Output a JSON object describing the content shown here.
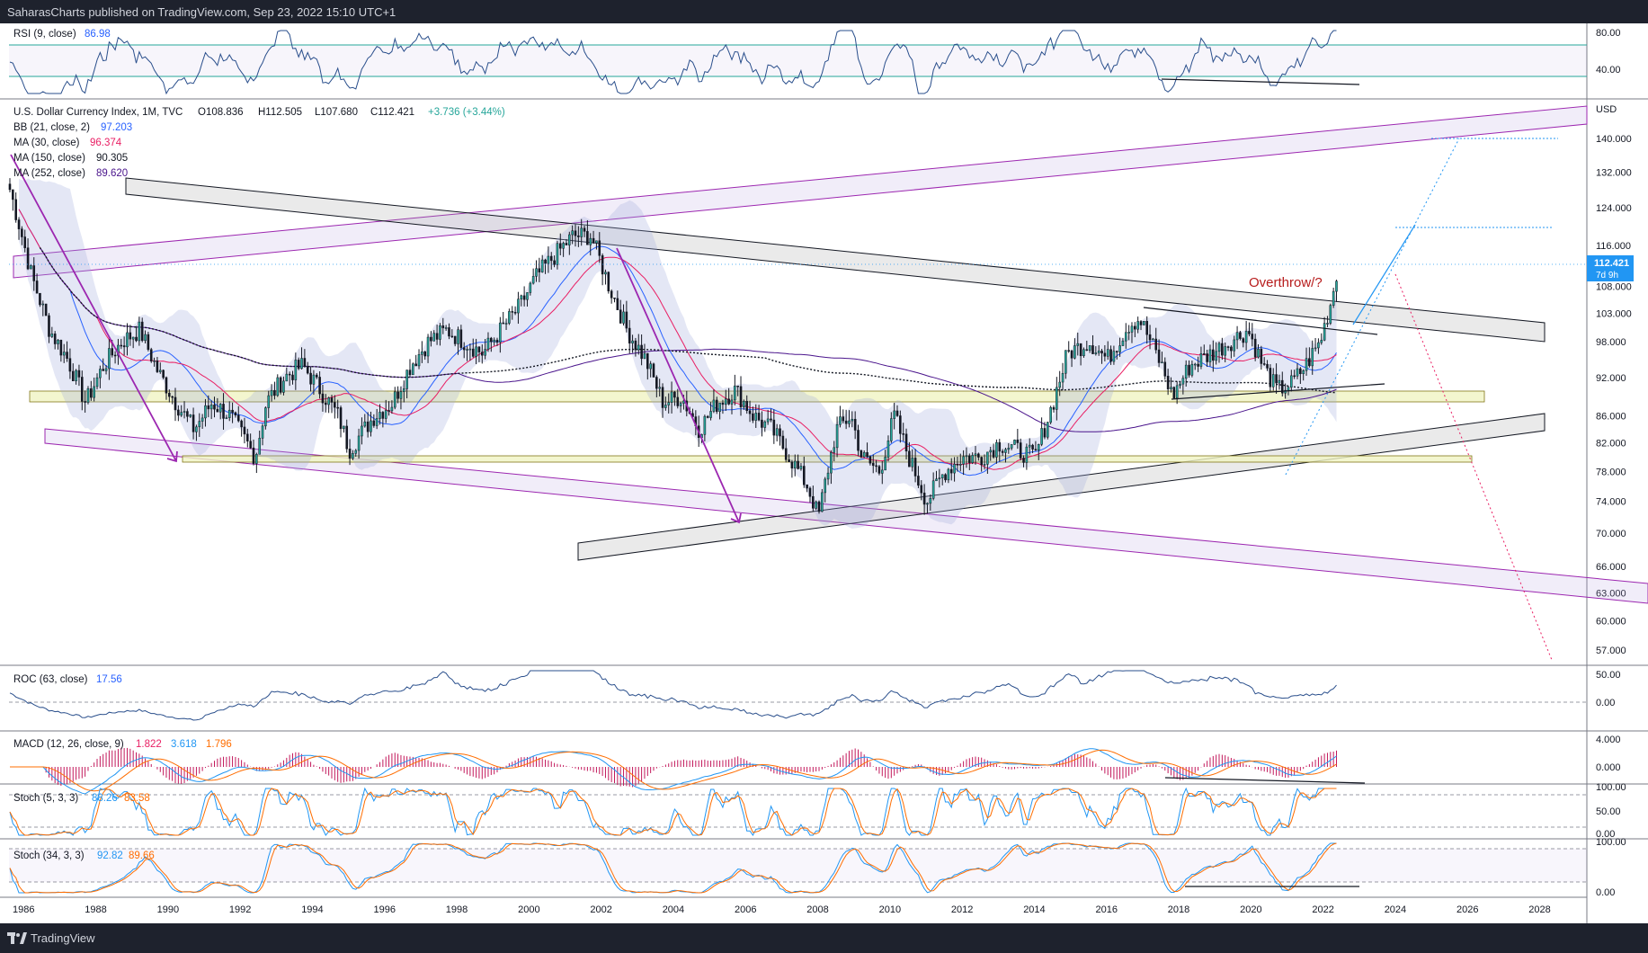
{
  "header": {
    "published": "SaharasCharts published on TradingView.com, Sep 23, 2022 15:10 UTC+1"
  },
  "footer": {
    "brand": "TradingView"
  },
  "colors": {
    "bull": "#26a69a",
    "bear": "#131722",
    "bb": "#2962ff",
    "ma30": "#e91e63",
    "ma150": "#4a148c",
    "ma252": "#131722",
    "channel": "#9c27b0",
    "zone": "#f0f4c3",
    "accent": "#2196f3"
  },
  "rsi_pane": {
    "label": "RSI (9, close)",
    "value": "86.98",
    "ticks": [
      "80.00",
      "40.00"
    ]
  },
  "main_pane": {
    "symbol_line": "U.S. Dollar Currency Index, 1M, TVC",
    "ohlc": {
      "o": "O108.836",
      "h": "H112.505",
      "l": "L107.680",
      "c": "C112.421",
      "chg": "+3.736 (+3.44%)"
    },
    "indicators": [
      {
        "name": "BB (21, close, 2)",
        "value": "97.203",
        "color": "#2962ff"
      },
      {
        "name": "MA (30, close)",
        "value": "96.374",
        "color": "#e91e63"
      },
      {
        "name": "MA (150, close)",
        "value": "90.305",
        "color": "#131722"
      },
      {
        "name": "MA (252, close)",
        "value": "89.620",
        "color": "#4a148c"
      }
    ],
    "currency": "USD",
    "price_badge": "112.421",
    "price_countdown": "7d 9h",
    "annotation": "Overthrow/?"
  },
  "roc_pane": {
    "label": "ROC (63, close)",
    "value": "17.56",
    "ticks": [
      "50.00",
      "0.00"
    ]
  },
  "macd_pane": {
    "label": "MACD (12, 26, close, 9)",
    "v1": "1.822",
    "v2": "3.618",
    "v3": "1.796",
    "ticks": [
      "4.000",
      "0.000"
    ]
  },
  "stoch1_pane": {
    "label": "Stoch (5, 3, 3)",
    "v1": "88.26",
    "v2": "83.58",
    "ticks": [
      "100.00",
      "50.00",
      "0.00"
    ]
  },
  "stoch2_pane": {
    "label": "Stoch (34, 3, 3)",
    "v1": "92.82",
    "v2": "89.66",
    "ticks": [
      "100.00",
      "0.00"
    ]
  },
  "chart_data": {
    "type": "candlestick",
    "title": "U.S. Dollar Currency Index, 1M, TVC",
    "x_range": [
      1986,
      2029
    ],
    "y_scale": "log",
    "ylim": [
      54,
      150
    ],
    "x_ticks": [
      "1986",
      "1988",
      "1990",
      "1992",
      "1994",
      "1996",
      "1998",
      "2000",
      "2002",
      "2004",
      "2006",
      "2008",
      "2010",
      "2012",
      "2014",
      "2016",
      "2018",
      "2020",
      "2022",
      "2024",
      "2026",
      "2028"
    ],
    "y_ticks": [
      "140.000",
      "132.000",
      "124.000",
      "116.000",
      "108.000",
      "103.000",
      "98.000",
      "92.000",
      "86.000",
      "82.000",
      "78.000",
      "74.000",
      "70.000",
      "66.000",
      "63.000",
      "60.000",
      "57.000"
    ],
    "price_path": [
      [
        1985.9,
        128
      ],
      [
        1986.5,
        110
      ],
      [
        1987.0,
        100
      ],
      [
        1987.5,
        95
      ],
      [
        1988.0,
        88
      ],
      [
        1988.5,
        94
      ],
      [
        1989.0,
        98
      ],
      [
        1989.5,
        100
      ],
      [
        1990.0,
        93
      ],
      [
        1990.5,
        88
      ],
      [
        1991.0,
        84
      ],
      [
        1991.5,
        88
      ],
      [
        1992.0,
        86
      ],
      [
        1992.7,
        80
      ],
      [
        1993.0,
        88
      ],
      [
        1993.5,
        92
      ],
      [
        1994.0,
        94
      ],
      [
        1994.5,
        90
      ],
      [
        1995.0,
        86
      ],
      [
        1995.3,
        81
      ],
      [
        1996.0,
        86
      ],
      [
        1996.5,
        88
      ],
      [
        1997.0,
        94
      ],
      [
        1997.5,
        98
      ],
      [
        1998.0,
        100
      ],
      [
        1998.5,
        98
      ],
      [
        1999.0,
        96
      ],
      [
        1999.5,
        100
      ],
      [
        2000.0,
        104
      ],
      [
        2000.5,
        110
      ],
      [
        2001.0,
        114
      ],
      [
        2001.5,
        118
      ],
      [
        2002.0,
        118
      ],
      [
        2002.5,
        108
      ],
      [
        2003.0,
        100
      ],
      [
        2003.5,
        95
      ],
      [
        2004.0,
        88
      ],
      [
        2004.5,
        89
      ],
      [
        2005.0,
        84
      ],
      [
        2005.5,
        88
      ],
      [
        2006.0,
        90
      ],
      [
        2006.5,
        86
      ],
      [
        2007.0,
        84
      ],
      [
        2007.5,
        80
      ],
      [
        2008.0,
        76
      ],
      [
        2008.3,
        72
      ],
      [
        2008.8,
        84
      ],
      [
        2009.2,
        86
      ],
      [
        2009.5,
        80
      ],
      [
        2010.0,
        78
      ],
      [
        2010.4,
        86
      ],
      [
        2010.8,
        80
      ],
      [
        2011.3,
        74
      ],
      [
        2011.8,
        78
      ],
      [
        2012.3,
        80
      ],
      [
        2012.8,
        80
      ],
      [
        2013.3,
        82
      ],
      [
        2013.8,
        81
      ],
      [
        2014.3,
        80
      ],
      [
        2014.8,
        88
      ],
      [
        2015.2,
        96
      ],
      [
        2015.8,
        98
      ],
      [
        2016.3,
        95
      ],
      [
        2016.9,
        101
      ],
      [
        2017.2,
        102
      ],
      [
        2017.8,
        94
      ],
      [
        2018.1,
        89
      ],
      [
        2018.6,
        94
      ],
      [
        2019.2,
        96
      ],
      [
        2019.7,
        98
      ],
      [
        2020.2,
        100
      ],
      [
        2020.6,
        94
      ],
      [
        2021.0,
        90
      ],
      [
        2021.4,
        91
      ],
      [
        2021.8,
        94
      ],
      [
        2022.2,
        98
      ],
      [
        2022.5,
        105
      ],
      [
        2022.7,
        112.4
      ]
    ],
    "latest": {
      "open": 108.836,
      "high": 112.505,
      "low": 107.68,
      "close": 112.421,
      "change": 3.736,
      "change_pct": 3.44
    }
  }
}
